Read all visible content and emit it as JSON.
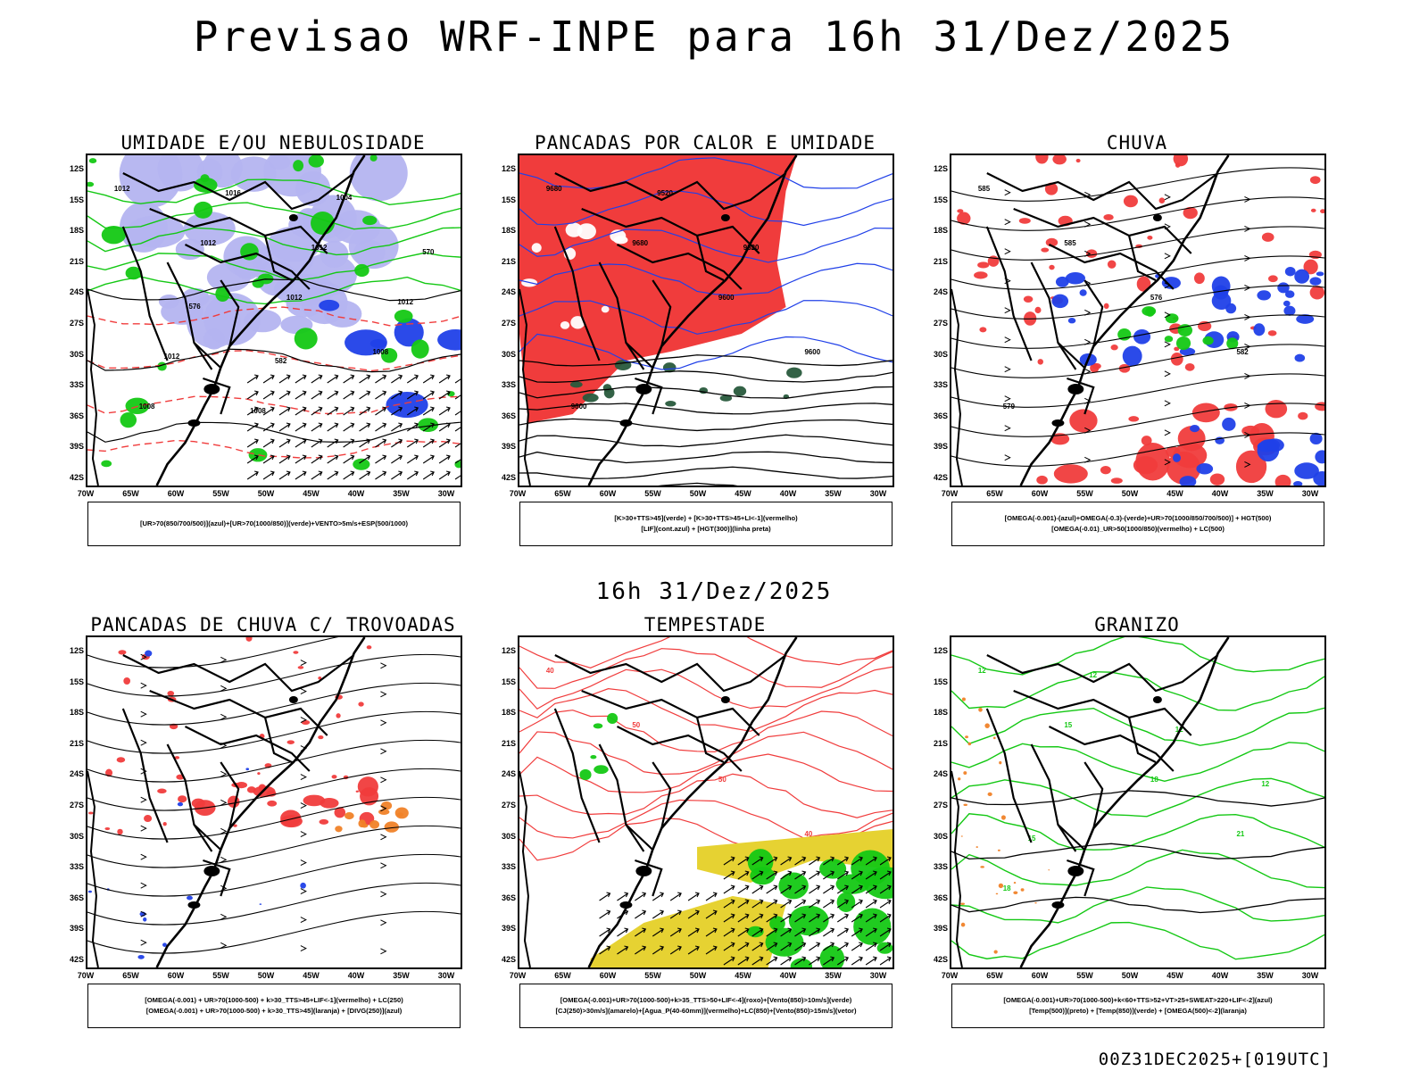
{
  "title": "Previsao WRF-INPE  para 16h 31/Dez/2025",
  "subtitle": "16h 31/Dez/2025",
  "footer": "00Z31DEC2025+[019UTC]",
  "axes": {
    "lat_labels": [
      "12S",
      "15S",
      "18S",
      "21S",
      "24S",
      "27S",
      "30S",
      "33S",
      "36S",
      "39S",
      "42S"
    ],
    "lon_labels": [
      "70W",
      "65W",
      "60W",
      "55W",
      "50W",
      "45W",
      "40W",
      "35W",
      "30W"
    ]
  },
  "colors": {
    "red": "#f03c3c",
    "green": "#14c814",
    "blue": "#2040e8",
    "lavender": "#b4b4f0",
    "yellow": "#e6d232",
    "orange": "#f08228",
    "darkgreen": "#285a3c",
    "black": "#000000"
  },
  "panels": [
    {
      "title": "UMIDADE E/OU NEBULOSIDADE",
      "legend": [
        "[UR>70(850/700/500)](azul)+[UR>70(1000/850)](verde)+VENTO>5m/s+ESP(500/1000)"
      ],
      "contour_labels": [
        "1012",
        "1012",
        "1012",
        "1008",
        "1008",
        "1016",
        "1012",
        "1012",
        "1012",
        "1008",
        "1004",
        "570",
        "576",
        "582"
      ]
    },
    {
      "title": "PANCADAS POR CALOR E UMIDADE",
      "legend": [
        "[K>30+TTS>45](verde) + [K>30+TTS>45+LI<-1](vermelho)",
        "[LIF](cont.azul) + [HGT(300)](linha preta)"
      ],
      "contour_labels": [
        "9680",
        "9680",
        "9600",
        "9600",
        "9600",
        "9520",
        "9520"
      ]
    },
    {
      "title": "CHUVA",
      "legend": [
        "[OMEGA(-0.001)-(azul)+OMEGA(-0.3)-(verde)+UR>70(1000/850/700/500)] + HGT(500)",
        "[OMEGA(-0.01)_UR>50(1000/850)(vermelho) + LC(500)"
      ],
      "contour_labels": [
        "585",
        "585",
        "576",
        "582",
        "579"
      ]
    },
    {
      "title": "PANCADAS DE CHUVA C/ TROVOADAS",
      "legend": [
        "[OMEGA(-0.001) + UR>70(1000-500) + k>30_TTS>45+LIF<-1](vermelho) + LC(250)",
        "[OMEGA(-0.001) + UR>70(1000-500) + k>30_TTS>45](laranja) + [DIVG(250)](azul)"
      ],
      "contour_labels": []
    },
    {
      "title": "TEMPESTADE",
      "legend": [
        "[OMEGA(-0.001)+UR>70(1000-500)+k>35_TTS>50+LIF<-4](roxo)+[Vento(850)>10m/s](verde)",
        "[CJ(250)>30m/s](amarelo)+[Agua_P(40-60mm)](vermelho)+LC(850)+[Vento(850)>15m/s](vetor)"
      ],
      "contour_labels": [
        "40",
        "50",
        "50",
        "40"
      ]
    },
    {
      "title": "GRANIZO",
      "legend": [
        "[OMEGA(-0.001)+UR>70(1000-500)+k<60+TTS>52+VT>25+SWEAT>220+LIF<-2](azul)",
        "[Temp(500)](preto) + [Temp(850)](verde) + [OMEGA(500)<-2](laranja)"
      ],
      "contour_labels": [
        "12",
        "15",
        "18",
        "21",
        "18",
        "12",
        "12",
        "12",
        "15"
      ]
    }
  ]
}
